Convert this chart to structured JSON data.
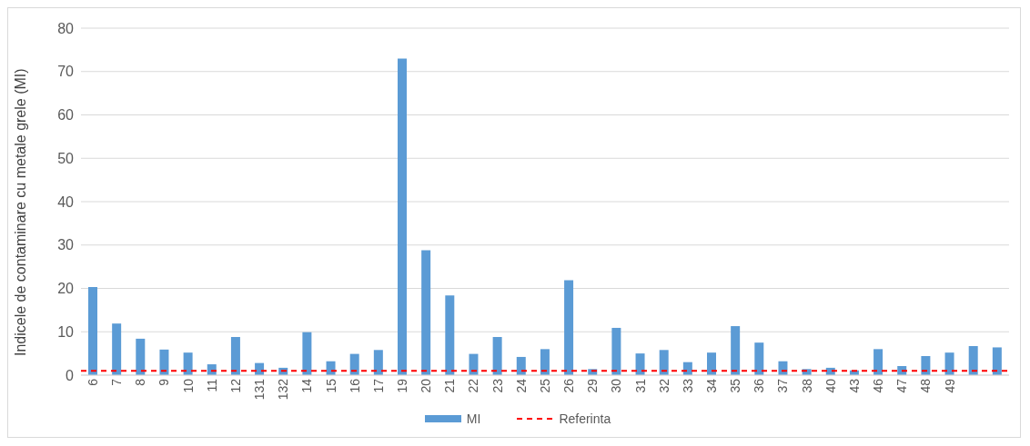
{
  "chart_data": {
    "type": "bar",
    "ylabel": "Indicele de contaminare cu metale grele (MI)",
    "categories": [
      "6",
      "7",
      "8",
      "9",
      "10",
      "11",
      "12",
      "131",
      "132",
      "14",
      "15",
      "16",
      "17",
      "19",
      "20",
      "21",
      "22",
      "23",
      "24",
      "25",
      "26",
      "29",
      "30",
      "31",
      "32",
      "33",
      "34",
      "35",
      "36",
      "37",
      "38",
      "40",
      "43",
      "46",
      "47",
      "48",
      "49",
      null,
      null
    ],
    "series": [
      {
        "name": "MI",
        "color": "#5b9bd5",
        "values": [
          20.3,
          11.9,
          8.4,
          5.9,
          5.2,
          2.5,
          8.8,
          2.8,
          1.7,
          9.9,
          3.2,
          4.9,
          5.8,
          73,
          28.8,
          18.4,
          4.9,
          8.8,
          4.2,
          6.0,
          21.9,
          1.4,
          10.9,
          5.0,
          5.8,
          3.0,
          5.2,
          11.3,
          7.5,
          3.2,
          1.4,
          1.7,
          1.1,
          6.0,
          2.1,
          4.4,
          5.2,
          6.7,
          6.4
        ]
      }
    ],
    "ref_lines": [
      {
        "axis": "y",
        "value": 1,
        "label": "Referinta",
        "color": "#ff0000",
        "line_style": "dashed"
      }
    ],
    "ylim": [
      0,
      80
    ],
    "yticks": [
      0,
      10,
      20,
      30,
      40,
      50,
      60,
      70,
      80
    ],
    "grid": "y",
    "legend": "bottom"
  }
}
